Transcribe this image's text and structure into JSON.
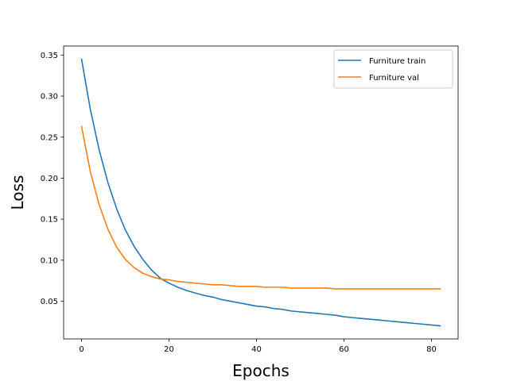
{
  "chart_data": {
    "type": "line",
    "title": "",
    "xlabel": "Epochs",
    "ylabel": "Loss",
    "xlim": [
      -4.1,
      86.1
    ],
    "ylim": [
      0.004,
      0.361
    ],
    "xticks": [
      0,
      20,
      40,
      60,
      80
    ],
    "xtick_labels": [
      "0",
      "20",
      "40",
      "60",
      "80"
    ],
    "yticks": [
      0.05,
      0.1,
      0.15,
      0.2,
      0.25,
      0.3,
      0.35
    ],
    "ytick_labels": [
      "0.05",
      "0.10",
      "0.15",
      "0.20",
      "0.25",
      "0.30",
      "0.35"
    ],
    "grid": false,
    "legend_position": "upper right",
    "series": [
      {
        "name": "Furniture train",
        "color": "#1f77b4",
        "x": [
          0,
          2,
          4,
          6,
          8,
          10,
          12,
          14,
          16,
          18,
          20,
          22,
          24,
          26,
          28,
          30,
          32,
          34,
          36,
          38,
          40,
          42,
          44,
          46,
          48,
          50,
          52,
          54,
          56,
          58,
          60,
          62,
          64,
          66,
          68,
          70,
          72,
          74,
          76,
          78,
          80,
          82
        ],
        "y": [
          0.345,
          0.284,
          0.235,
          0.195,
          0.163,
          0.137,
          0.117,
          0.101,
          0.088,
          0.078,
          0.072,
          0.067,
          0.063,
          0.06,
          0.057,
          0.055,
          0.052,
          0.05,
          0.048,
          0.046,
          0.044,
          0.043,
          0.041,
          0.04,
          0.038,
          0.037,
          0.036,
          0.035,
          0.034,
          0.033,
          0.031,
          0.03,
          0.029,
          0.028,
          0.027,
          0.026,
          0.025,
          0.024,
          0.023,
          0.022,
          0.021,
          0.02
        ]
      },
      {
        "name": "Furniture val",
        "color": "#ff7f0e",
        "x": [
          0,
          2,
          4,
          6,
          8,
          10,
          12,
          14,
          16,
          18,
          20,
          22,
          24,
          26,
          28,
          30,
          32,
          34,
          36,
          38,
          40,
          42,
          44,
          46,
          48,
          50,
          52,
          54,
          56,
          58,
          60,
          62,
          64,
          66,
          68,
          70,
          72,
          74,
          76,
          78,
          80,
          82
        ],
        "y": [
          0.263,
          0.208,
          0.168,
          0.138,
          0.116,
          0.101,
          0.091,
          0.084,
          0.08,
          0.077,
          0.076,
          0.074,
          0.073,
          0.072,
          0.071,
          0.07,
          0.07,
          0.069,
          0.068,
          0.068,
          0.068,
          0.067,
          0.067,
          0.067,
          0.066,
          0.066,
          0.066,
          0.066,
          0.066,
          0.065,
          0.065,
          0.065,
          0.065,
          0.065,
          0.065,
          0.065,
          0.065,
          0.065,
          0.065,
          0.065,
          0.065,
          0.065
        ]
      }
    ]
  }
}
